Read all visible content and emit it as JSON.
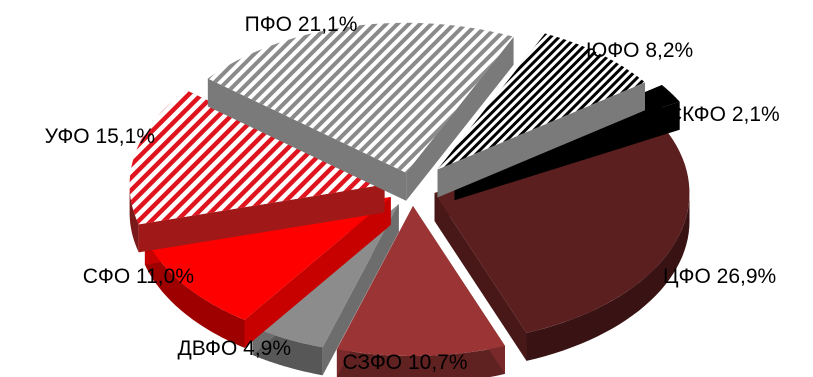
{
  "chart_data": {
    "type": "pie",
    "style": "3d-exploded",
    "unit": "%",
    "slices": [
      {
        "name": "ЦФО",
        "value": 26.9,
        "label": "ЦФО 26,9%",
        "color": "#5c1f1f",
        "fill": "solid"
      },
      {
        "name": "СЗФО",
        "value": 10.7,
        "label": "СЗФО 10,7%",
        "color": "#9b3535",
        "fill": "solid"
      },
      {
        "name": "ДВФО",
        "value": 4.9,
        "label": "ДВФО 4,9%",
        "color": "#8c8c8c",
        "fill": "solid"
      },
      {
        "name": "СФО",
        "value": 11.0,
        "label": "СФО 11,0%",
        "color": "#ff0000",
        "fill": "solid"
      },
      {
        "name": "УФО",
        "value": 15.1,
        "label": "УФО 15,1%",
        "color": "#e0141e",
        "fill": "stripes"
      },
      {
        "name": "ПФО",
        "value": 21.1,
        "label": "ПФО 21,1%",
        "color": "#8a8a8a",
        "fill": "stripes"
      },
      {
        "name": "ЮФО",
        "value": 8.2,
        "label": "ЮФО 8,2%",
        "color": "#000000",
        "fill": "stripes"
      },
      {
        "name": "СКФО",
        "value": 2.1,
        "label": "СКФО 2,1%",
        "color": "#000000",
        "fill": "solid"
      }
    ]
  }
}
